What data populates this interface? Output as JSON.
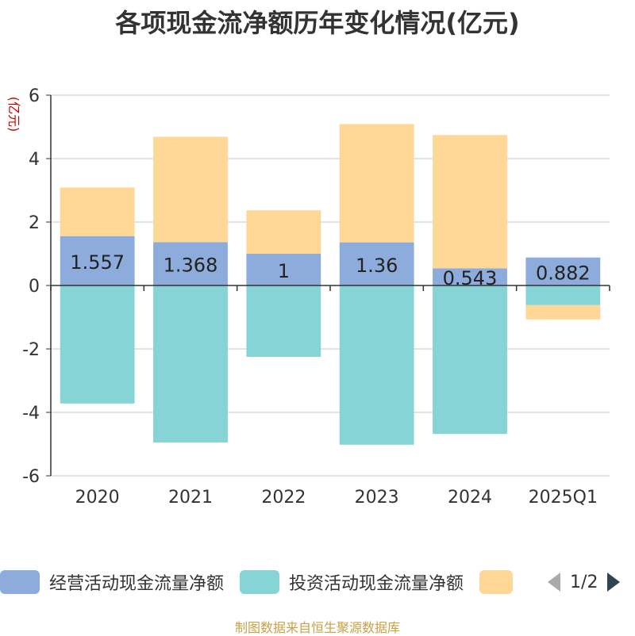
{
  "title": "各项现金流净额历年变化情况(亿元)",
  "source_text": "制图数据来自恒生聚源数据库",
  "legend": {
    "pager_text": "1/2"
  },
  "colors": {
    "operating": "#8eacdb",
    "investing": "#87d4d6",
    "financing": "#ffd898",
    "axis": "#333333",
    "grid": "#c8c8c8",
    "pager_prev": "#aaaaaa",
    "pager_next": "#2f4554"
  },
  "chart_data": {
    "type": "bar",
    "stacked": true,
    "title": "各项现金流净额历年变化情况(亿元)",
    "ylabel": "(亿元)",
    "ylim": [
      -6,
      6
    ],
    "yticks": [
      -6,
      -4,
      -2,
      0,
      2,
      4,
      6
    ],
    "grid": true,
    "legend_position": "bottom",
    "categories": [
      "2020",
      "2021",
      "2022",
      "2023",
      "2024",
      "2025Q1"
    ],
    "series": [
      {
        "name": "经营活动现金流量净额",
        "color": "#8eacdb",
        "values": [
          1.557,
          1.368,
          1,
          1.36,
          0.543,
          0.882
        ],
        "labels": [
          "1.557",
          "1.368",
          "1",
          "1.36",
          "0.543",
          "0.882"
        ]
      },
      {
        "name": "投资活动现金流量净额",
        "color": "#87d4d6",
        "values": [
          -3.72,
          -4.95,
          -2.25,
          -5.02,
          -4.68,
          -0.62
        ]
      },
      {
        "color": "#ffd898",
        "values": [
          1.53,
          3.32,
          1.37,
          3.73,
          4.2,
          -0.45
        ]
      }
    ]
  }
}
